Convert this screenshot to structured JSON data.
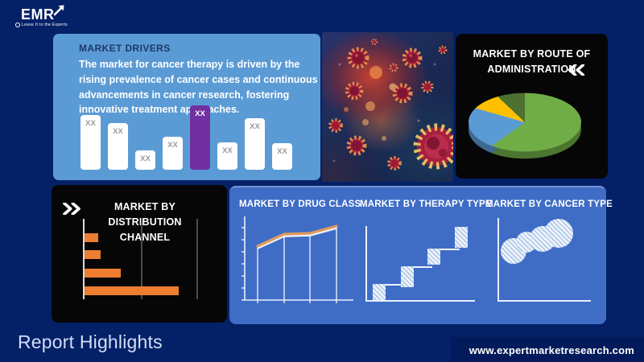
{
  "brand": {
    "logo_text": "EMR",
    "tagline": "Leave It to the Experts",
    "website": "www.expertmarketresearch.com"
  },
  "footer": {
    "report_highlights": "Report Highlights"
  },
  "panels": {
    "market_drivers": {
      "title": "MARKET DRIVERS",
      "description": "The market for cancer therapy is driven by the rising prevalence of cancer cases and continuous advancements in cancer research, fostering innovative treatment approaches."
    },
    "route_of_administration": {
      "title": "MARKET BY ROUTE OF ADMINISTRATION"
    },
    "distribution_channel": {
      "title": "MARKET BY DISTRIBUTION CHANNEL"
    },
    "drug_class": {
      "title": "MARKET BY DRUG CLASS"
    },
    "therapy_type": {
      "title": "MARKET BY THERAPY TYPE"
    },
    "cancer_type": {
      "title": "MARKET BY CANCER TYPE"
    }
  },
  "colors": {
    "background": "#042168",
    "panel_light_blue": "#5b9bd5",
    "panel_blue": "#3f6dc6",
    "panel_black": "#060606",
    "accent_purple": "#7030a0",
    "accent_orange": "#ed7d31",
    "pie_green": "#70ad47",
    "pie_blue": "#5b9bd5",
    "pie_yellow": "#ffc000",
    "pie_dark_green": "#4e7031"
  },
  "chart_data": [
    {
      "id": "market-drivers-bars",
      "type": "bar",
      "title": "MARKET DRIVERS",
      "labels": [
        "XX",
        "XX",
        "XX",
        "XX",
        "XX",
        "XX",
        "XX",
        "XX"
      ],
      "values": [
        68,
        58,
        24,
        41,
        80,
        34,
        64,
        33
      ],
      "unit": "relative-height",
      "highlight_index": 4,
      "bar_color": "#ffffff",
      "highlight_color": "#7030a0",
      "ylim": [
        0,
        80
      ]
    },
    {
      "id": "route-pie",
      "type": "pie",
      "title": "MARKET BY ROUTE OF ADMINISTRATION",
      "style": "3d",
      "slices": [
        {
          "label": "segment-green",
          "value": 60,
          "color": "#70ad47"
        },
        {
          "label": "segment-blue",
          "value": 23,
          "color": "#5b9bd5"
        },
        {
          "label": "segment-yellow",
          "value": 9,
          "color": "#ffc000"
        },
        {
          "label": "segment-dark-green",
          "value": 8,
          "color": "#4e7031"
        }
      ]
    },
    {
      "id": "distribution-bars",
      "type": "bar",
      "orientation": "horizontal",
      "title": "MARKET BY DISTRIBUTION CHANNEL",
      "values": [
        17,
        20,
        45,
        117
      ],
      "unit": "relative-length",
      "bar_color": "#ed7d31",
      "grid": true
    },
    {
      "id": "drug-class-line",
      "type": "line",
      "title": "MARKET BY DRUG CLASS",
      "x": [
        1,
        2,
        3,
        4
      ],
      "y": [
        67,
        82,
        83,
        92
      ],
      "unit": "relative-height",
      "line_color": "#e09a5d",
      "drop_lines": true
    },
    {
      "id": "therapy-steps",
      "type": "bar",
      "subtype": "ascending-steps",
      "title": "MARKET BY THERAPY TYPE",
      "values": [
        20,
        42,
        64,
        91
      ],
      "unit": "relative-height",
      "fill": "hatched"
    },
    {
      "id": "cancer-bubbles",
      "type": "scatter",
      "subtype": "bubbles",
      "title": "MARKET BY CANCER TYPE",
      "points": [
        {
          "x": 35,
          "y": 51,
          "r": 16
        },
        {
          "x": 51,
          "y": 40,
          "r": 13
        },
        {
          "x": 71,
          "y": 36,
          "r": 16
        },
        {
          "x": 91,
          "y": 29,
          "r": 18
        }
      ],
      "fill": "hatched"
    }
  ]
}
